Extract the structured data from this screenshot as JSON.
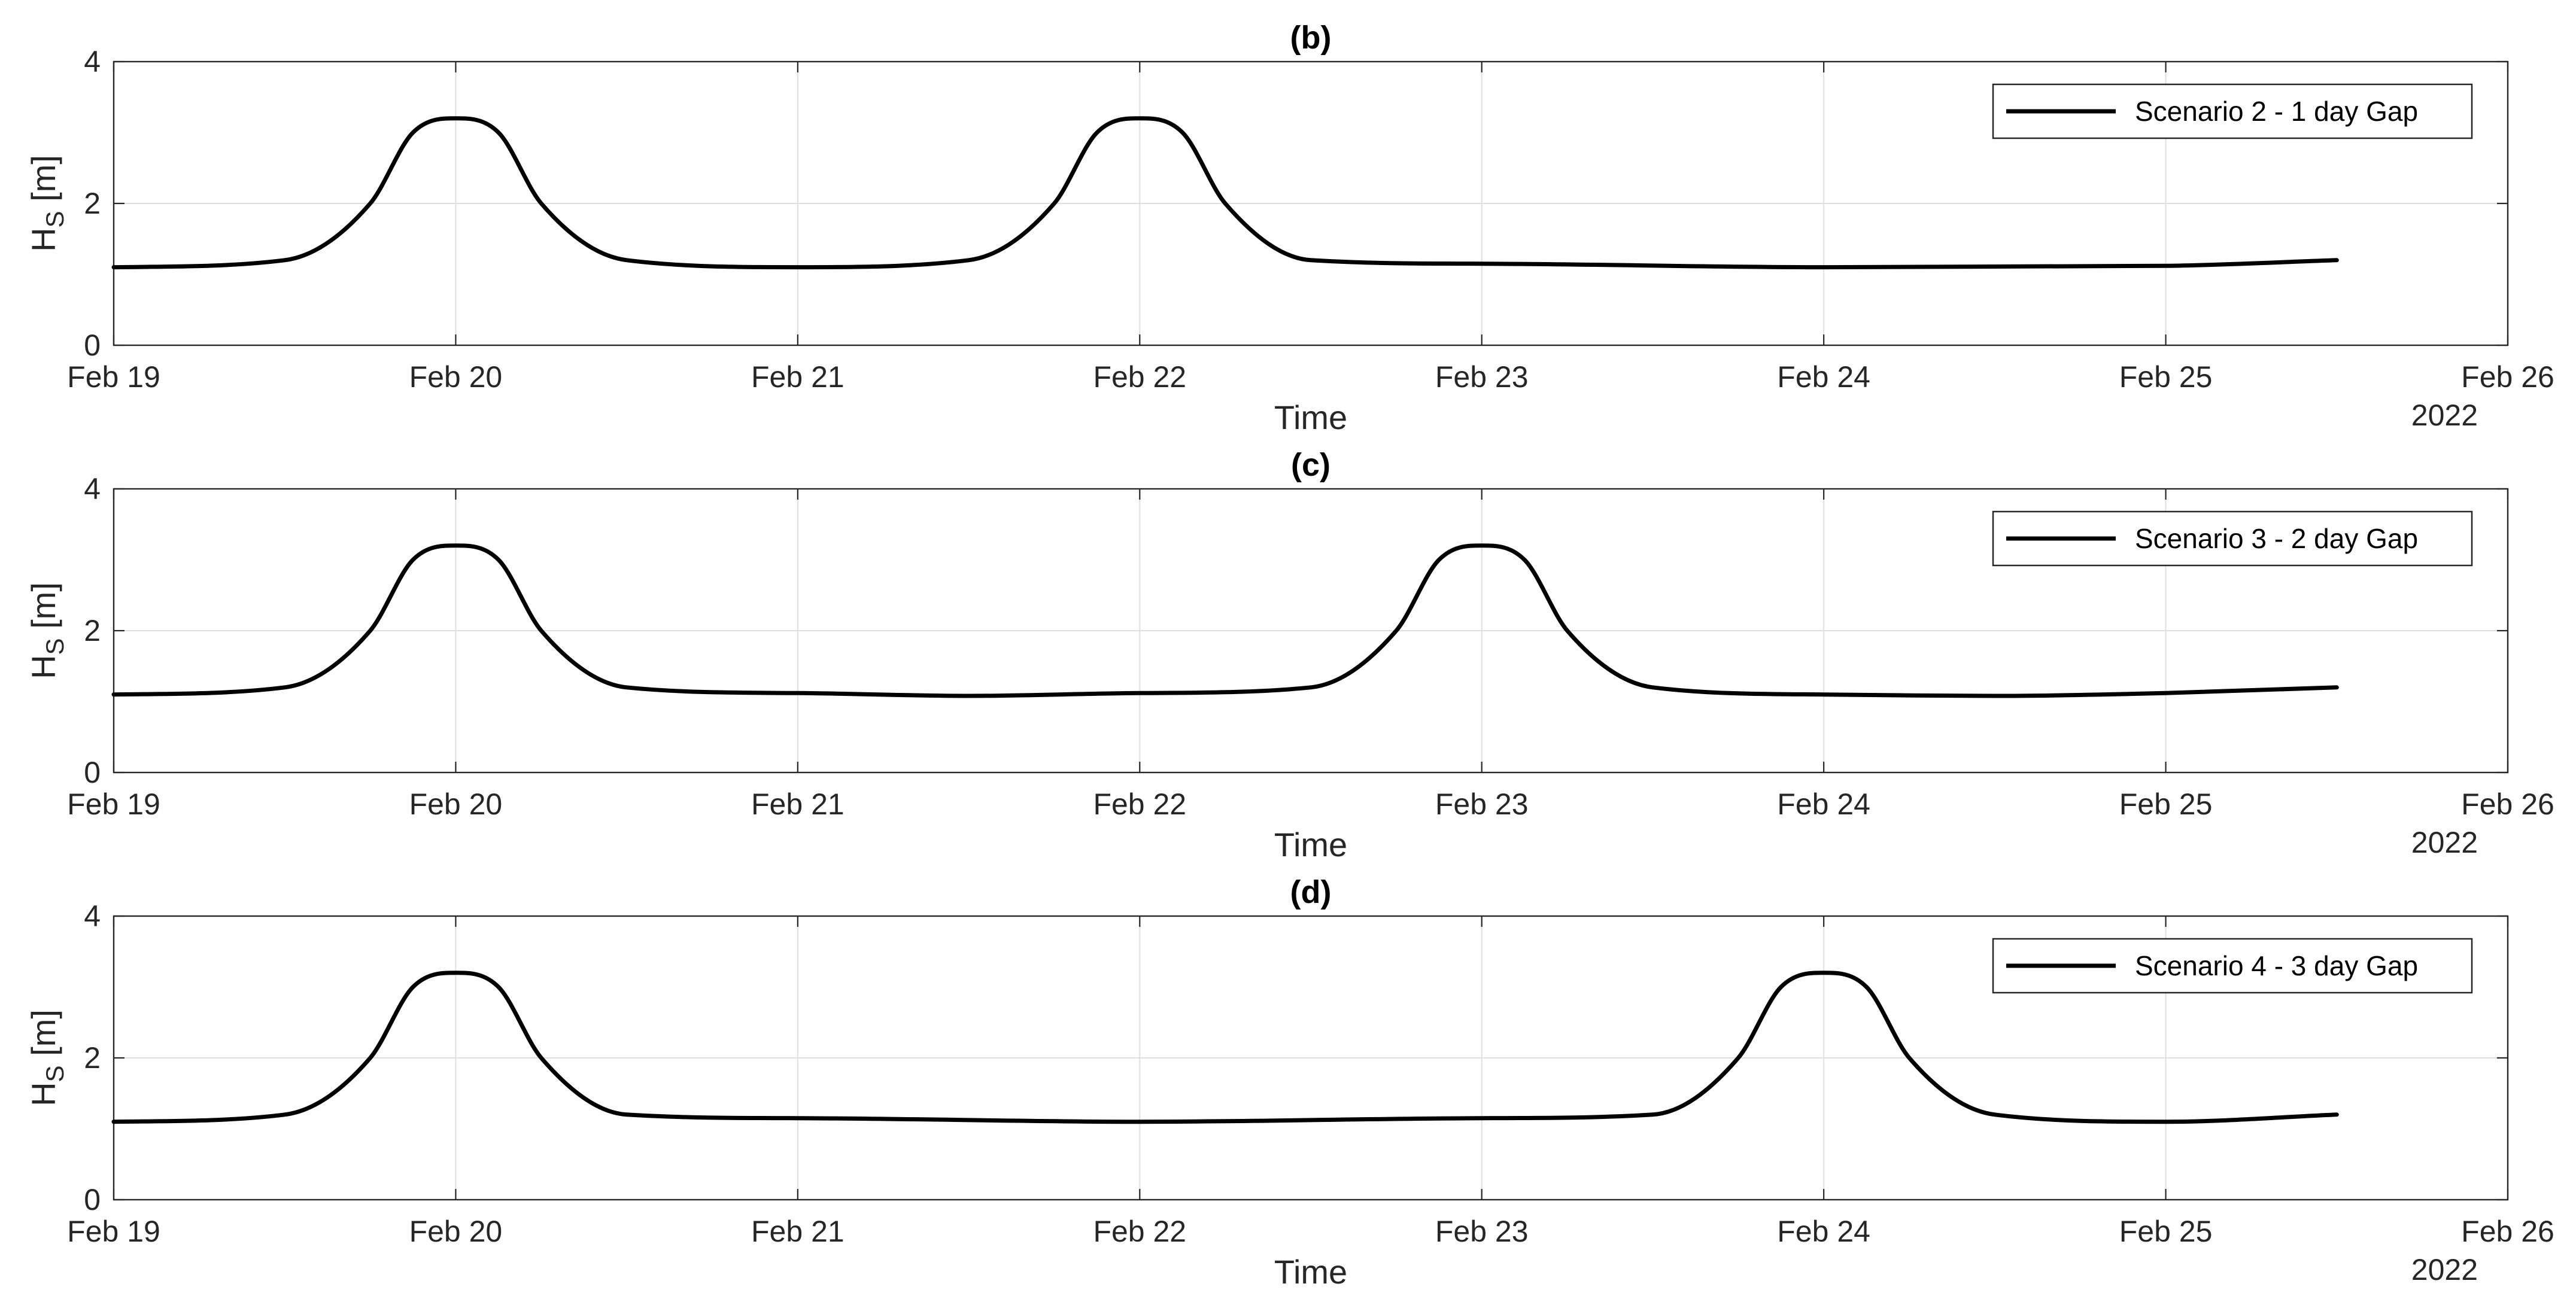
{
  "chart_data": [
    {
      "type": "line",
      "title": "(b)",
      "xlabel": "Time",
      "ylabel": "H",
      "ylabel_subscript": "S",
      "ylabel_unit": "[m]",
      "date_secondary_label": "2022",
      "xlim": [
        "2022-02-19",
        "2022-02-26"
      ],
      "ylim": [
        0,
        4
      ],
      "xticks": [
        "Feb 19",
        "Feb 20",
        "Feb 21",
        "Feb 22",
        "Feb 23",
        "Feb 24",
        "Feb 25",
        "Feb 26"
      ],
      "yticks": [
        "0",
        "2",
        "4"
      ],
      "grid": true,
      "legend_position": "top-right",
      "series": [
        {
          "name": "Scenario 2 - 1 day Gap",
          "color": "#000000",
          "x": [
            "2022-02-19 00:00",
            "2022-02-19 12:00",
            "2022-02-19 18:00",
            "2022-02-19 21:00",
            "2022-02-20 00:00",
            "2022-02-20 03:00",
            "2022-02-20 06:00",
            "2022-02-20 12:00",
            "2022-02-21 00:00",
            "2022-02-21 12:00",
            "2022-02-21 18:00",
            "2022-02-21 21:00",
            "2022-02-22 00:00",
            "2022-02-22 03:00",
            "2022-02-22 06:00",
            "2022-02-22 12:00",
            "2022-02-23 00:00",
            "2022-02-24 00:00",
            "2022-02-25 00:00",
            "2022-02-25 12:00"
          ],
          "y": [
            1.1,
            1.2,
            2.0,
            3.0,
            3.2,
            3.0,
            2.0,
            1.2,
            1.1,
            1.2,
            2.0,
            3.0,
            3.2,
            3.0,
            2.0,
            1.2,
            1.15,
            1.1,
            1.12,
            1.2
          ]
        }
      ]
    },
    {
      "type": "line",
      "title": "(c)",
      "xlabel": "Time",
      "ylabel": "H",
      "ylabel_subscript": "S",
      "ylabel_unit": "[m]",
      "date_secondary_label": "2022",
      "xlim": [
        "2022-02-19",
        "2022-02-26"
      ],
      "ylim": [
        0,
        4
      ],
      "xticks": [
        "Feb 19",
        "Feb 20",
        "Feb 21",
        "Feb 22",
        "Feb 23",
        "Feb 24",
        "Feb 25",
        "Feb 26"
      ],
      "yticks": [
        "0",
        "2",
        "4"
      ],
      "grid": true,
      "legend_position": "top-right",
      "series": [
        {
          "name": "Scenario 3 - 2 day Gap",
          "color": "#000000",
          "x": [
            "2022-02-19 00:00",
            "2022-02-19 12:00",
            "2022-02-19 18:00",
            "2022-02-19 21:00",
            "2022-02-20 00:00",
            "2022-02-20 03:00",
            "2022-02-20 06:00",
            "2022-02-20 12:00",
            "2022-02-21 00:00",
            "2022-02-21 12:00",
            "2022-02-22 00:00",
            "2022-02-22 12:00",
            "2022-02-22 18:00",
            "2022-02-22 21:00",
            "2022-02-23 00:00",
            "2022-02-23 03:00",
            "2022-02-23 06:00",
            "2022-02-23 12:00",
            "2022-02-24 00:00",
            "2022-02-24 12:00",
            "2022-02-25 00:00",
            "2022-02-25 12:00"
          ],
          "y": [
            1.1,
            1.2,
            2.0,
            3.0,
            3.2,
            3.0,
            2.0,
            1.2,
            1.12,
            1.08,
            1.12,
            1.2,
            2.0,
            3.0,
            3.2,
            3.0,
            2.0,
            1.2,
            1.1,
            1.08,
            1.12,
            1.2
          ]
        }
      ]
    },
    {
      "type": "line",
      "title": "(d)",
      "xlabel": "Time",
      "ylabel": "H",
      "ylabel_subscript": "S",
      "ylabel_unit": "[m]",
      "date_secondary_label": "2022",
      "xlim": [
        "2022-02-19",
        "2022-02-26"
      ],
      "ylim": [
        0,
        4
      ],
      "xticks": [
        "Feb 19",
        "Feb 20",
        "Feb 21",
        "Feb 22",
        "Feb 23",
        "Feb 24",
        "Feb 25",
        "Feb 26"
      ],
      "yticks": [
        "0",
        "2",
        "4"
      ],
      "grid": true,
      "legend_position": "top-right",
      "series": [
        {
          "name": "Scenario 4 - 3 day Gap",
          "color": "#000000",
          "x": [
            "2022-02-19 00:00",
            "2022-02-19 12:00",
            "2022-02-19 18:00",
            "2022-02-19 21:00",
            "2022-02-20 00:00",
            "2022-02-20 03:00",
            "2022-02-20 06:00",
            "2022-02-20 12:00",
            "2022-02-21 00:00",
            "2022-02-22 00:00",
            "2022-02-23 00:00",
            "2022-02-23 12:00",
            "2022-02-23 18:00",
            "2022-02-23 21:00",
            "2022-02-24 00:00",
            "2022-02-24 03:00",
            "2022-02-24 06:00",
            "2022-02-24 12:00",
            "2022-02-25 00:00",
            "2022-02-25 12:00"
          ],
          "y": [
            1.1,
            1.2,
            2.0,
            3.0,
            3.2,
            3.0,
            2.0,
            1.2,
            1.15,
            1.1,
            1.15,
            1.2,
            2.0,
            3.0,
            3.2,
            3.0,
            2.0,
            1.2,
            1.1,
            1.2
          ]
        }
      ]
    }
  ]
}
